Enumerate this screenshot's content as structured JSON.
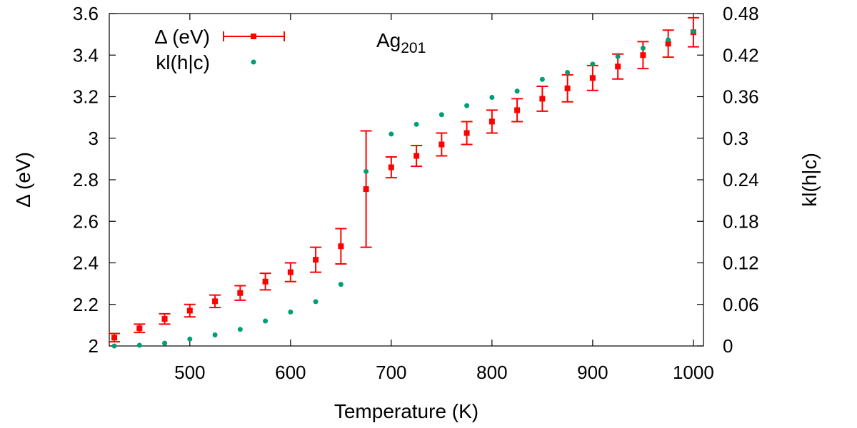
{
  "chart_data": {
    "type": "scatter",
    "title": "",
    "annotation": {
      "base": "Ag",
      "subscript": "201"
    },
    "xlabel": "Temperature (K)",
    "ylabel": "Δ (eV)",
    "y2label": "kl(h|c)",
    "xlim": [
      420,
      1010
    ],
    "ylim": [
      2,
      3.6
    ],
    "y2lim": [
      0,
      0.48
    ],
    "grid": false,
    "legend_position": "top-left",
    "x_ticks": [
      "500",
      "600",
      "700",
      "800",
      "900",
      "1000"
    ],
    "y_ticks": [
      "2",
      "2.2",
      "2.4",
      "2.6",
      "2.8",
      "3",
      "3.2",
      "3.4",
      "3.6"
    ],
    "y2_ticks": [
      "0",
      "0.06",
      "0.12",
      "0.18",
      "0.24",
      "0.3",
      "0.36",
      "0.42",
      "0.48"
    ],
    "series": [
      {
        "name": "Δ (eV)",
        "axis": "left",
        "color": "#ff0000",
        "marker": "square-errorbar",
        "x": [
          425,
          450,
          475,
          500,
          525,
          550,
          575,
          600,
          625,
          650,
          675,
          700,
          725,
          750,
          775,
          800,
          825,
          850,
          875,
          900,
          925,
          950,
          975,
          1000
        ],
        "y": [
          2.04,
          2.085,
          2.13,
          2.17,
          2.215,
          2.255,
          2.31,
          2.355,
          2.415,
          2.48,
          2.755,
          2.86,
          2.915,
          2.97,
          3.025,
          3.08,
          3.135,
          3.19,
          3.24,
          3.29,
          3.345,
          3.4,
          3.455,
          3.51
        ],
        "err": [
          0.02,
          0.02,
          0.025,
          0.03,
          0.03,
          0.035,
          0.04,
          0.045,
          0.06,
          0.085,
          0.28,
          0.05,
          0.05,
          0.055,
          0.055,
          0.055,
          0.055,
          0.06,
          0.065,
          0.06,
          0.06,
          0.065,
          0.065,
          0.07
        ]
      },
      {
        "name": "kl(h|c)",
        "axis": "right",
        "color": "#009e73",
        "marker": "dot",
        "x": [
          425,
          450,
          475,
          500,
          525,
          550,
          575,
          600,
          625,
          650,
          675,
          700,
          725,
          750,
          775,
          800,
          825,
          850,
          875,
          900,
          925,
          950,
          975,
          1000
        ],
        "y": [
          0.0,
          0.001,
          0.004,
          0.01,
          0.016,
          0.024,
          0.036,
          0.049,
          0.064,
          0.089,
          0.252,
          0.306,
          0.32,
          0.334,
          0.347,
          0.359,
          0.368,
          0.385,
          0.395,
          0.407,
          0.418,
          0.43,
          0.442,
          0.454
        ]
      }
    ]
  }
}
